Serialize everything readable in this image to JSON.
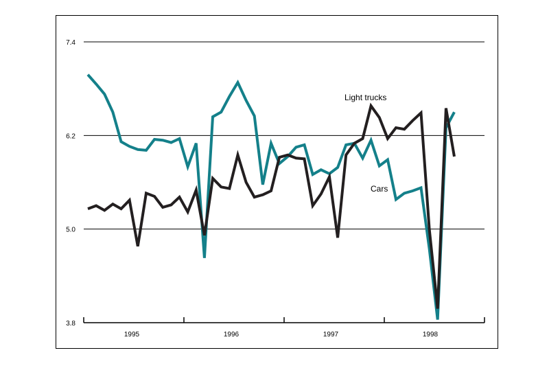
{
  "chart_data": {
    "type": "line",
    "title": "",
    "xlabel": "",
    "ylabel": "",
    "ylim": [
      3.8,
      7.4
    ],
    "yticks": [
      "7.4",
      "6.2",
      "5.0",
      "3.8"
    ],
    "ytick_values": [
      7.4,
      6.2,
      5.0,
      3.8
    ],
    "xtick_labels": [
      "1995",
      "1996",
      "1997",
      "1998"
    ],
    "grid": "horizontal",
    "legend": "inline labels",
    "series_colors": {
      "Light trucks": "#231f20",
      "Cars": "#14808a"
    },
    "series": [
      {
        "name": "Light trucks",
        "values": [
          5.26,
          5.3,
          5.24,
          5.32,
          5.26,
          5.37,
          4.78,
          5.46,
          5.42,
          5.28,
          5.31,
          5.41,
          5.22,
          5.5,
          4.92,
          5.65,
          5.54,
          5.52,
          5.95,
          5.6,
          5.41,
          5.44,
          5.49,
          5.92,
          5.95,
          5.91,
          5.9,
          5.3,
          5.45,
          5.67,
          4.89,
          5.95,
          6.1,
          6.16,
          6.58,
          6.43,
          6.16,
          6.3,
          6.28,
          6.39,
          6.49,
          5.0,
          3.98,
          6.55,
          5.93
        ]
      },
      {
        "name": "Cars",
        "values": [
          6.98,
          6.86,
          6.73,
          6.5,
          6.12,
          6.06,
          6.02,
          6.01,
          6.15,
          6.14,
          6.11,
          6.16,
          5.8,
          6.1,
          4.63,
          6.44,
          6.5,
          6.7,
          6.88,
          6.65,
          6.45,
          5.57,
          6.1,
          5.84,
          5.93,
          6.05,
          6.08,
          5.7,
          5.76,
          5.71,
          5.79,
          6.08,
          6.1,
          5.91,
          6.14,
          5.81,
          5.89,
          5.38,
          5.46,
          5.49,
          5.53,
          4.75,
          3.84,
          6.3,
          6.5
        ]
      }
    ]
  }
}
